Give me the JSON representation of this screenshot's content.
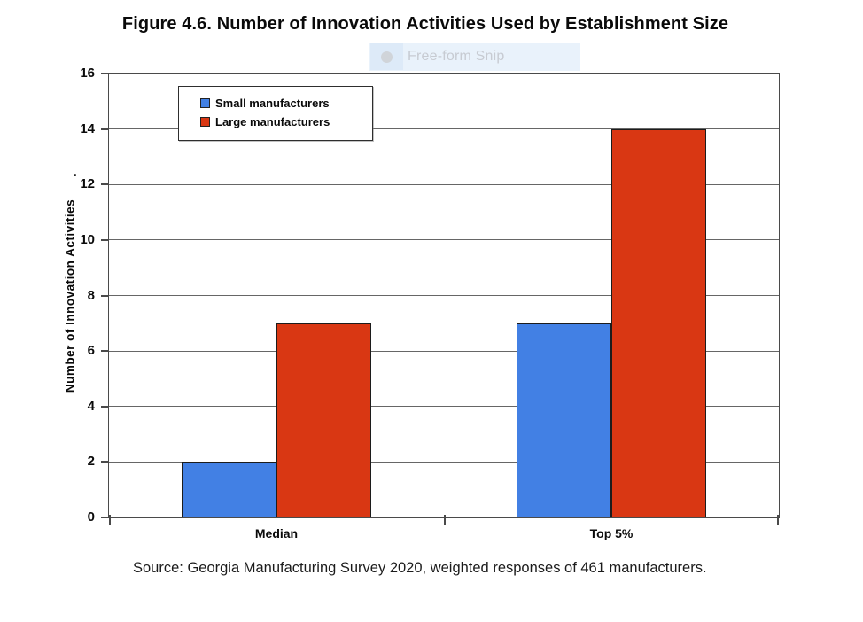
{
  "snip_tool": {
    "menu_item": "Free-form Snip",
    "icon": "circle-icon"
  },
  "chart_data": {
    "type": "bar",
    "title": "Figure 4.6. Number of Innovation Activities Used by Establishment Size",
    "categories": [
      "Median",
      "Top 5%"
    ],
    "series": [
      {
        "name": "Small manufacturers",
        "color": "#4280E4",
        "values": [
          2,
          7
        ]
      },
      {
        "name": "Large manufacturers",
        "color": "#D93713",
        "values": [
          7,
          14
        ]
      }
    ],
    "xlabel": "",
    "ylabel": "Number of Innovation Activities",
    "ylabel_stray_mark": ".",
    "ylim": [
      0,
      16
    ],
    "ytick_step": 2,
    "grid": "horizontal",
    "legend_position": "inside top-left",
    "source": "Source: Georgia Manufacturing Survey 2020, weighted responses of 461 manufacturers."
  },
  "colors": {
    "small_series": "#4280E4",
    "large_series": "#D93713",
    "bar_border": "#1c1c1c",
    "grid_line": "#666666",
    "axis_border": "#4a4a4a",
    "snip_background": "#e9f2fb",
    "snip_icon_highlight": "#ddeaf8",
    "snip_icon": "#d0d4d9",
    "snip_text": "#c7cbd2"
  }
}
